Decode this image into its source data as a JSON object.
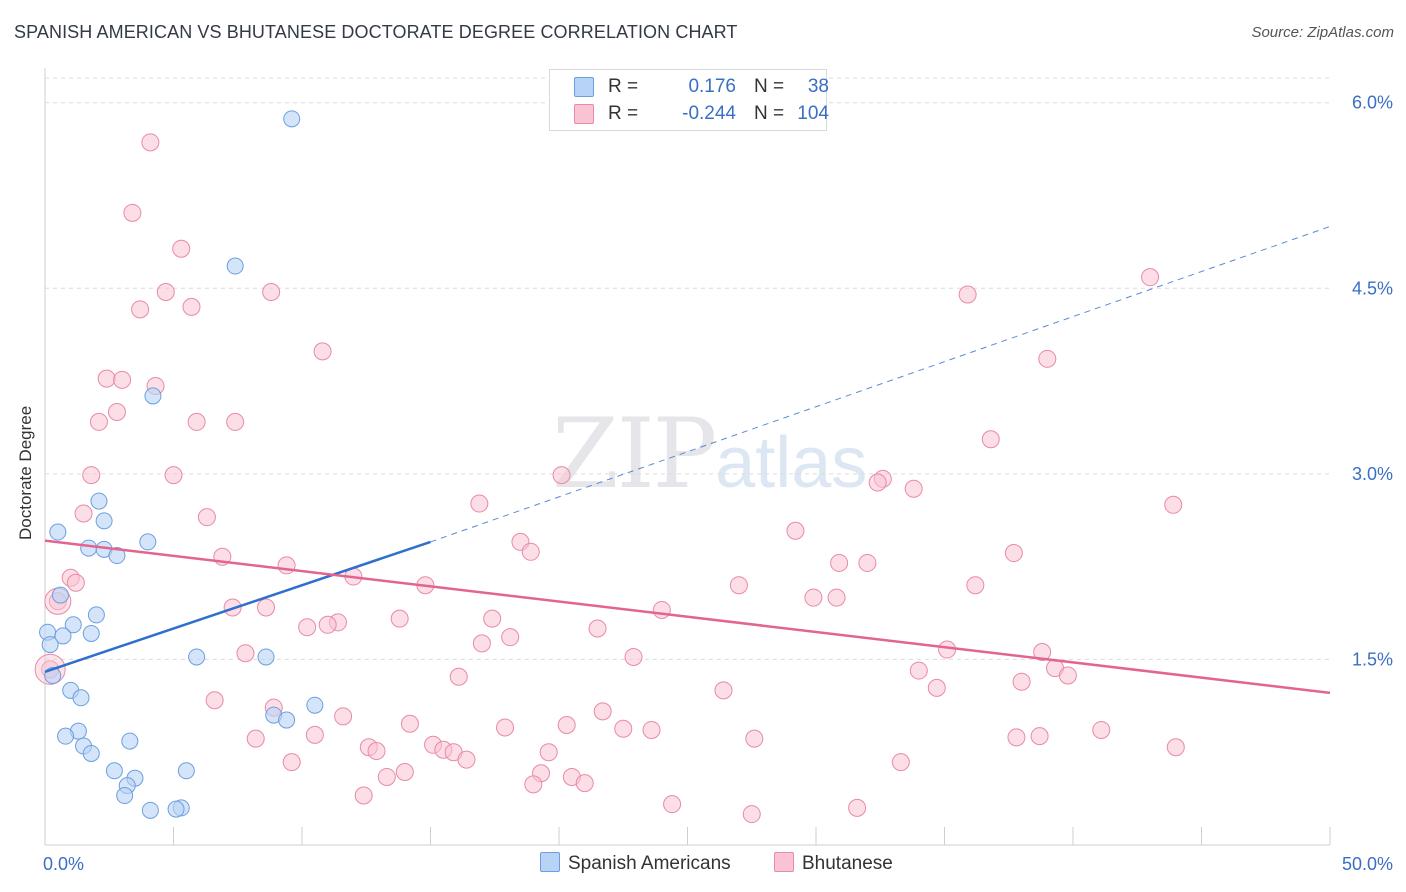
{
  "header": {
    "title": "SPANISH AMERICAN VS BHUTANESE DOCTORATE DEGREE CORRELATION CHART",
    "source": "Source: ZipAtlas.com"
  },
  "watermark": {
    "zip": "ZIP",
    "atlas": "atlas"
  },
  "legend": {
    "rows": [
      {
        "r_label": "R =",
        "r_value": "0.176",
        "n_label": "N =",
        "n_value": "38",
        "color": "#b7d3f5"
      },
      {
        "r_label": "R =",
        "r_value": "-0.244",
        "n_label": "N =",
        "n_value": "104",
        "color": "#f9c3d3"
      }
    ]
  },
  "bottom_legend": {
    "series_a": "Spanish Americans",
    "series_b": "Bhutanese"
  },
  "colors": {
    "blue_fill": "#b7d3f5",
    "blue_stroke": "#6d9ee0",
    "blue_line": "#2f6fcd",
    "pink_fill": "#f9c3d3",
    "pink_stroke": "#e88aa8",
    "pink_line": "#e2648f",
    "tick_text": "#3a6fc4"
  },
  "chart_data": {
    "type": "scatter",
    "title": "SPANISH AMERICAN VS BHUTANESE DOCTORATE DEGREE CORRELATION CHART",
    "xlabel": "",
    "ylabel": "Doctorate Degree",
    "xlim": [
      0,
      50
    ],
    "ylim": [
      0,
      6.2
    ],
    "x_tick_labels": [
      "0.0%",
      "50.0%"
    ],
    "y_ticks": [
      1.5,
      3.0,
      4.5,
      6.0
    ],
    "y_tick_labels": [
      "1.5%",
      "3.0%",
      "4.5%",
      "6.0%"
    ],
    "grid": true,
    "series": [
      {
        "name": "Spanish Americans",
        "R": 0.176,
        "N": 38,
        "trend": {
          "x0": 0,
          "y0": 1.4,
          "x1": 15,
          "y1": 2.45,
          "extend_to_x": 50,
          "extend_to_y": 5.0
        },
        "points": [
          [
            9.6,
            5.87
          ],
          [
            7.4,
            4.68
          ],
          [
            4.2,
            3.63
          ],
          [
            2.1,
            2.78
          ],
          [
            2.3,
            2.62
          ],
          [
            0.5,
            2.53
          ],
          [
            4.0,
            2.45
          ],
          [
            1.7,
            2.4
          ],
          [
            2.3,
            2.39
          ],
          [
            2.8,
            2.34
          ],
          [
            0.6,
            2.02
          ],
          [
            2.0,
            1.86
          ],
          [
            1.1,
            1.78
          ],
          [
            1.8,
            1.71
          ],
          [
            0.7,
            1.69
          ],
          [
            0.1,
            1.72
          ],
          [
            0.2,
            1.62
          ],
          [
            5.9,
            1.52
          ],
          [
            8.6,
            1.52
          ],
          [
            0.3,
            1.37
          ],
          [
            1.0,
            1.25
          ],
          [
            1.4,
            1.19
          ],
          [
            10.5,
            1.13
          ],
          [
            8.9,
            1.05
          ],
          [
            9.4,
            1.01
          ],
          [
            1.3,
            0.92
          ],
          [
            0.8,
            0.88
          ],
          [
            3.3,
            0.84
          ],
          [
            1.5,
            0.8
          ],
          [
            1.8,
            0.74
          ],
          [
            2.7,
            0.6
          ],
          [
            5.5,
            0.6
          ],
          [
            3.5,
            0.54
          ],
          [
            3.2,
            0.48
          ],
          [
            3.1,
            0.4
          ],
          [
            4.1,
            0.28
          ],
          [
            5.3,
            0.3
          ],
          [
            5.1,
            0.29
          ]
        ]
      },
      {
        "name": "Bhutanese",
        "R": -0.244,
        "N": 104,
        "trend": {
          "x0": 0,
          "y0": 2.46,
          "x1": 50,
          "y1": 1.23
        },
        "points": [
          [
            4.1,
            5.68
          ],
          [
            3.4,
            5.11
          ],
          [
            5.3,
            4.82
          ],
          [
            4.7,
            4.47
          ],
          [
            8.8,
            4.47
          ],
          [
            3.7,
            4.33
          ],
          [
            5.7,
            4.35
          ],
          [
            43.0,
            4.59
          ],
          [
            35.9,
            4.45
          ],
          [
            10.8,
            3.99
          ],
          [
            39.0,
            3.93
          ],
          [
            2.4,
            3.77
          ],
          [
            3.0,
            3.76
          ],
          [
            4.3,
            3.71
          ],
          [
            2.8,
            3.5
          ],
          [
            2.1,
            3.42
          ],
          [
            5.9,
            3.42
          ],
          [
            7.4,
            3.42
          ],
          [
            36.8,
            3.28
          ],
          [
            1.8,
            2.99
          ],
          [
            5.0,
            2.99
          ],
          [
            20.1,
            2.99
          ],
          [
            32.6,
            2.96
          ],
          [
            32.4,
            2.93
          ],
          [
            33.8,
            2.88
          ],
          [
            16.9,
            2.76
          ],
          [
            43.9,
            2.75
          ],
          [
            1.5,
            2.68
          ],
          [
            6.3,
            2.65
          ],
          [
            29.2,
            2.54
          ],
          [
            18.5,
            2.45
          ],
          [
            18.9,
            2.37
          ],
          [
            37.7,
            2.36
          ],
          [
            6.9,
            2.33
          ],
          [
            30.9,
            2.28
          ],
          [
            32.0,
            2.28
          ],
          [
            9.4,
            2.26
          ],
          [
            1.0,
            2.16
          ],
          [
            1.2,
            2.12
          ],
          [
            12.0,
            2.17
          ],
          [
            14.8,
            2.1
          ],
          [
            27.0,
            2.1
          ],
          [
            36.2,
            2.1
          ],
          [
            0.5,
            1.97
          ],
          [
            29.9,
            2.0
          ],
          [
            30.8,
            2.0
          ],
          [
            7.3,
            1.92
          ],
          [
            8.6,
            1.92
          ],
          [
            24.0,
            1.9
          ],
          [
            13.8,
            1.83
          ],
          [
            17.4,
            1.83
          ],
          [
            11.4,
            1.8
          ],
          [
            10.2,
            1.76
          ],
          [
            11.0,
            1.78
          ],
          [
            21.5,
            1.75
          ],
          [
            18.1,
            1.68
          ],
          [
            17.0,
            1.63
          ],
          [
            0.2,
            1.42
          ],
          [
            7.8,
            1.55
          ],
          [
            35.1,
            1.58
          ],
          [
            38.8,
            1.56
          ],
          [
            22.9,
            1.52
          ],
          [
            39.3,
            1.43
          ],
          [
            39.8,
            1.37
          ],
          [
            34.0,
            1.41
          ],
          [
            16.1,
            1.36
          ],
          [
            38.0,
            1.32
          ],
          [
            34.7,
            1.27
          ],
          [
            26.4,
            1.25
          ],
          [
            6.6,
            1.17
          ],
          [
            8.9,
            1.11
          ],
          [
            11.6,
            1.04
          ],
          [
            21.7,
            1.08
          ],
          [
            14.2,
            0.98
          ],
          [
            17.9,
            0.95
          ],
          [
            20.3,
            0.97
          ],
          [
            22.5,
            0.94
          ],
          [
            23.6,
            0.93
          ],
          [
            41.1,
            0.93
          ],
          [
            8.2,
            0.86
          ],
          [
            10.5,
            0.89
          ],
          [
            27.6,
            0.86
          ],
          [
            37.8,
            0.87
          ],
          [
            38.7,
            0.88
          ],
          [
            15.1,
            0.81
          ],
          [
            15.5,
            0.77
          ],
          [
            15.9,
            0.75
          ],
          [
            12.6,
            0.79
          ],
          [
            12.9,
            0.76
          ],
          [
            19.6,
            0.75
          ],
          [
            44.0,
            0.79
          ],
          [
            9.6,
            0.67
          ],
          [
            16.4,
            0.69
          ],
          [
            33.3,
            0.67
          ],
          [
            14.0,
            0.59
          ],
          [
            13.3,
            0.55
          ],
          [
            19.3,
            0.58
          ],
          [
            20.5,
            0.55
          ],
          [
            21.0,
            0.5
          ],
          [
            19.0,
            0.49
          ],
          [
            12.4,
            0.4
          ],
          [
            24.4,
            0.33
          ],
          [
            27.5,
            0.25
          ],
          [
            31.6,
            0.3
          ]
        ]
      }
    ]
  }
}
